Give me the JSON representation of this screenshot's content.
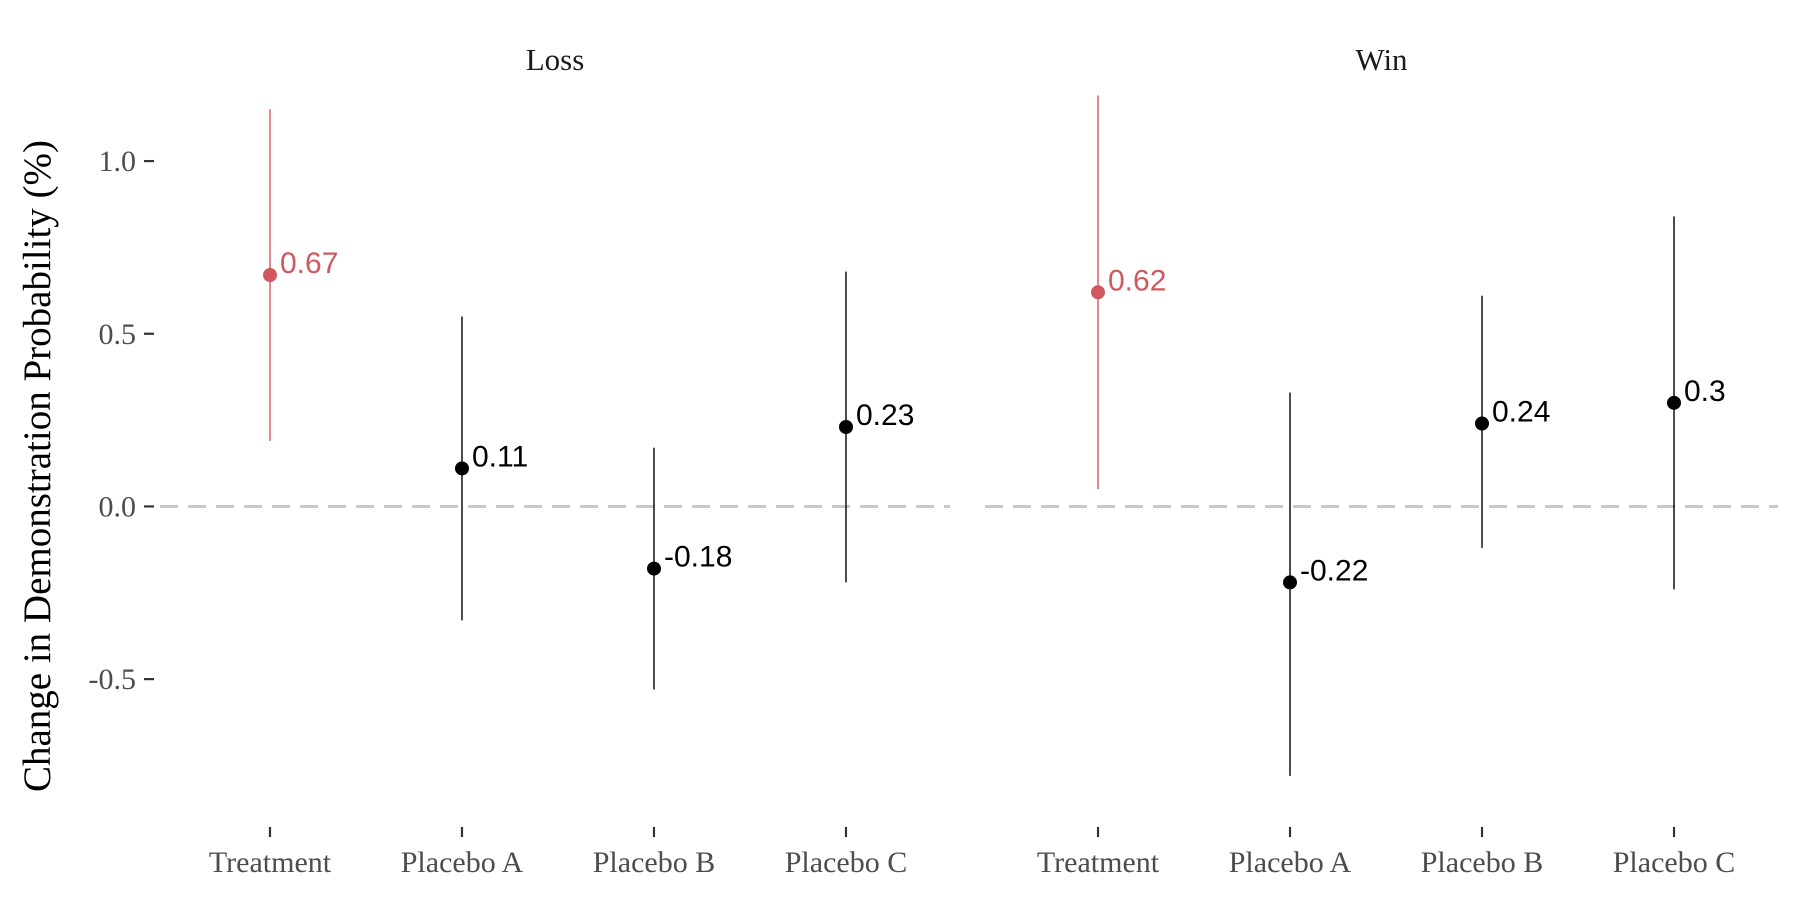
{
  "chart_data": {
    "type": "scatter",
    "ylabel": "Change in Demonstration Probability (%)",
    "ylim": [
      -0.85,
      1.2
    ],
    "yticks": [
      -0.5,
      0.0,
      0.5,
      1.0
    ],
    "ytick_labels": [
      "-0.5",
      "0.0",
      "0.5",
      "1.0"
    ],
    "grid": false,
    "reference_line": {
      "y": 0.0,
      "style": "dashed",
      "color": "#c8c8c8"
    },
    "colors": {
      "highlight": "#d0585e",
      "default": "#000000"
    },
    "panels": [
      {
        "title": "Loss",
        "categories": [
          "Treatment",
          "Placebo A",
          "Placebo B",
          "Placebo C"
        ],
        "values": [
          0.67,
          0.11,
          -0.18,
          0.23
        ],
        "labels": [
          "0.67",
          "0.11",
          "-0.18",
          "0.23"
        ],
        "ci_lower": [
          0.19,
          -0.33,
          -0.53,
          -0.22
        ],
        "ci_upper": [
          1.15,
          0.55,
          0.17,
          0.68
        ],
        "highlight": [
          true,
          false,
          false,
          false
        ]
      },
      {
        "title": "Win",
        "categories": [
          "Treatment",
          "Placebo A",
          "Placebo B",
          "Placebo C"
        ],
        "values": [
          0.62,
          -0.22,
          0.24,
          0.3
        ],
        "labels": [
          "0.62",
          "-0.22",
          "0.24",
          "0.3"
        ],
        "ci_lower": [
          0.05,
          -0.78,
          -0.12,
          -0.24
        ],
        "ci_upper": [
          1.19,
          0.33,
          0.61,
          0.84
        ],
        "highlight": [
          true,
          false,
          false,
          false
        ]
      }
    ]
  }
}
